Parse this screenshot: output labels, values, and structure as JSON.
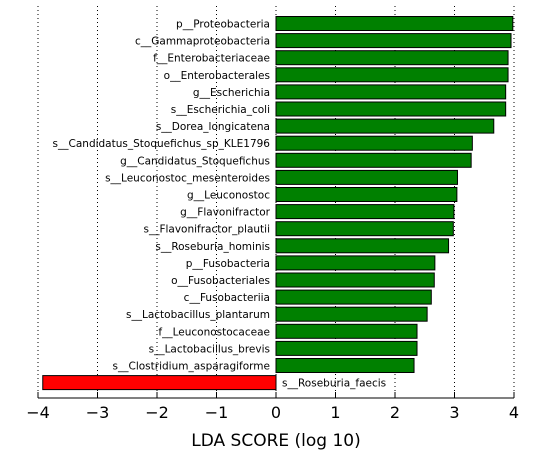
{
  "chart_data": {
    "type": "bar",
    "orientation": "horizontal",
    "xlabel": "LDA SCORE (log 10)",
    "xlim": [
      -4,
      4
    ],
    "xticks": [
      -4,
      -3,
      -2,
      -1,
      0,
      1,
      2,
      3,
      4
    ],
    "xtick_labels": [
      "−4",
      "−3",
      "−2",
      "−1",
      "0",
      "1",
      "2",
      "3",
      "4"
    ],
    "grid": "vertical dotted",
    "colors": {
      "positive": "#008000",
      "negative": "#ff0000"
    },
    "categories": [
      "p__Proteobacteria",
      "c__Gammaproteobacteria",
      "f__Enterobacteriaceae",
      "o__Enterobacterales",
      "g__Escherichia",
      "s__Escherichia_coli",
      "s__Dorea_longicatena",
      "s__Candidatus_Stoquefichus_sp_KLE1796",
      "g__Candidatus_Stoquefichus",
      "s__Leuconostoc_mesenteroides",
      "g__Leuconostoc",
      "g__Flavonifractor",
      "s__Flavonifractor_plautii",
      "s__Roseburia_hominis",
      "p__Fusobacteria",
      "o__Fusobacteriales",
      "c__Fusobacteriia",
      "s__Lactobacillus_plantarum",
      "f__Leuconostocaceae",
      "s__Lactobacillus_brevis",
      "s__Clostridium_asparagiforme",
      "s__Roseburia_faecis"
    ],
    "values": [
      3.98,
      3.95,
      3.9,
      3.9,
      3.86,
      3.86,
      3.66,
      3.3,
      3.28,
      3.05,
      3.04,
      2.99,
      2.98,
      2.9,
      2.67,
      2.66,
      2.61,
      2.54,
      2.37,
      2.37,
      2.32,
      -3.92
    ]
  }
}
